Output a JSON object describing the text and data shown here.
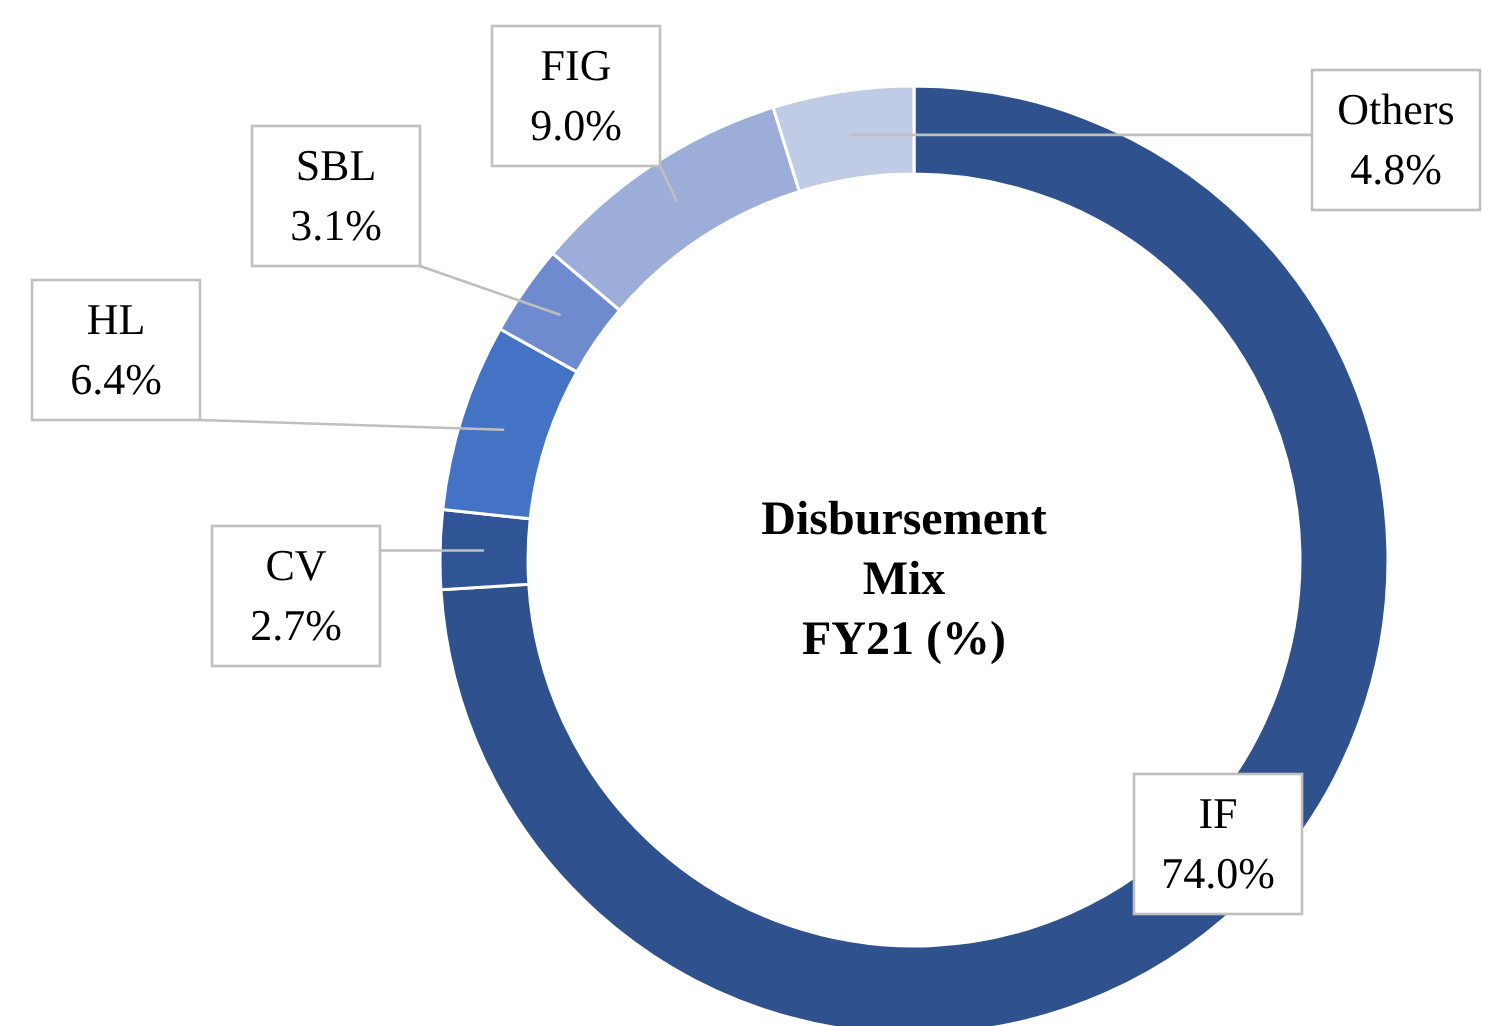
{
  "chart_data": {
    "type": "donut",
    "title": "Disbursement\nMix\nFY21 (%)",
    "categories": [
      "IF",
      "CV",
      "HL",
      "SBL",
      "FIG",
      "Others"
    ],
    "values": [
      74.0,
      2.7,
      6.4,
      3.1,
      9.0,
      4.8
    ],
    "value_labels": [
      "74.0%",
      "2.7%",
      "6.4%",
      "3.1%",
      "9.0%",
      "4.8%"
    ],
    "colors": [
      "#2f528f",
      "#2f5597",
      "#4472c4",
      "#6f8bd0",
      "#9dadd9",
      "#c0cbe6"
    ]
  }
}
